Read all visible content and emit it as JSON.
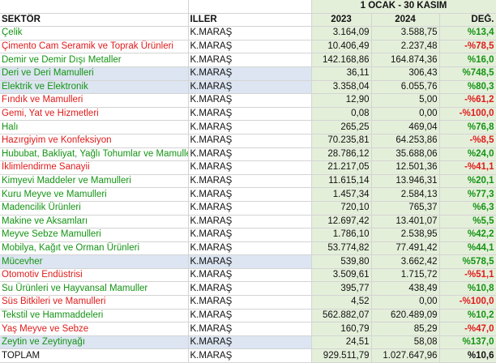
{
  "header": {
    "period": "1 OCAK  -  30 KASIM",
    "col_sector": "SEKTÖR",
    "col_province": "ILLER",
    "col_year1": "2023",
    "col_year2": "2024",
    "col_change": "DEĞ."
  },
  "rows": [
    {
      "sector": "Çelik",
      "province": "K.MARAŞ",
      "y2023": "3.164,09",
      "y2024": "3.588,75",
      "change": "%13,4",
      "trend": "pos",
      "highlight": false
    },
    {
      "sector": "Çimento Cam Seramik ve Toprak Ürünleri",
      "province": "K.MARAŞ",
      "y2023": "10.406,49",
      "y2024": "2.237,48",
      "change": "-%78,5",
      "trend": "neg",
      "highlight": false
    },
    {
      "sector": "Demir ve Demir Dışı Metaller",
      "province": "K.MARAŞ",
      "y2023": "142.168,86",
      "y2024": "164.874,36",
      "change": "%16,0",
      "trend": "pos",
      "highlight": false
    },
    {
      "sector": "Deri ve Deri Mamulleri",
      "province": "K.MARAŞ",
      "y2023": "36,11",
      "y2024": "306,43",
      "change": "%748,5",
      "trend": "pos",
      "highlight": true
    },
    {
      "sector": "Elektrik ve Elektronik",
      "province": "K.MARAŞ",
      "y2023": "3.358,04",
      "y2024": "6.055,76",
      "change": "%80,3",
      "trend": "pos",
      "highlight": true
    },
    {
      "sector": "Fındık ve Mamulleri",
      "province": "K.MARAŞ",
      "y2023": "12,90",
      "y2024": "5,00",
      "change": "-%61,2",
      "trend": "neg",
      "highlight": false
    },
    {
      "sector": "Gemi, Yat ve Hizmetleri",
      "province": "K.MARAŞ",
      "y2023": "0,08",
      "y2024": "0,00",
      "change": "-%100,0",
      "trend": "neg",
      "highlight": false
    },
    {
      "sector": "Halı",
      "province": "K.MARAŞ",
      "y2023": "265,25",
      "y2024": "469,04",
      "change": "%76,8",
      "trend": "pos",
      "highlight": false
    },
    {
      "sector": "Hazırgiyim ve Konfeksiyon",
      "province": "K.MARAŞ",
      "y2023": "70.235,81",
      "y2024": "64.253,86",
      "change": "-%8,5",
      "trend": "neg",
      "highlight": false
    },
    {
      "sector": "Hububat, Bakliyat, Yağlı Tohumlar ve Mamulleri",
      "province": "K.MARAŞ",
      "y2023": "28.786,12",
      "y2024": "35.688,06",
      "change": "%24,0",
      "trend": "pos",
      "highlight": false
    },
    {
      "sector": "İklimlendirme Sanayii",
      "province": "K.MARAŞ",
      "y2023": "21.217,05",
      "y2024": "12.501,36",
      "change": "-%41,1",
      "trend": "neg",
      "highlight": false
    },
    {
      "sector": "Kimyevi Maddeler ve Mamulleri",
      "province": "K.MARAŞ",
      "y2023": "11.615,14",
      "y2024": "13.946,31",
      "change": "%20,1",
      "trend": "pos",
      "highlight": false
    },
    {
      "sector": "Kuru Meyve ve Mamulleri",
      "province": "K.MARAŞ",
      "y2023": "1.457,34",
      "y2024": "2.584,13",
      "change": "%77,3",
      "trend": "pos",
      "highlight": false
    },
    {
      "sector": "Madencilik Ürünleri",
      "province": "K.MARAŞ",
      "y2023": "720,10",
      "y2024": "765,37",
      "change": "%6,3",
      "trend": "pos",
      "highlight": false
    },
    {
      "sector": "Makine ve Aksamları",
      "province": "K.MARAŞ",
      "y2023": "12.697,42",
      "y2024": "13.401,07",
      "change": "%5,5",
      "trend": "pos",
      "highlight": false
    },
    {
      "sector": "Meyve Sebze Mamulleri",
      "province": "K.MARAŞ",
      "y2023": "1.786,10",
      "y2024": "2.538,95",
      "change": "%42,2",
      "trend": "pos",
      "highlight": false
    },
    {
      "sector": "Mobilya, Kağıt ve Orman Ürünleri",
      "province": "K.MARAŞ",
      "y2023": "53.774,82",
      "y2024": "77.491,42",
      "change": "%44,1",
      "trend": "pos",
      "highlight": false
    },
    {
      "sector": "Mücevher",
      "province": "K.MARAŞ",
      "y2023": "539,80",
      "y2024": "3.662,42",
      "change": "%578,5",
      "trend": "pos",
      "highlight": true
    },
    {
      "sector": "Otomotiv Endüstrisi",
      "province": "K.MARAŞ",
      "y2023": "3.509,61",
      "y2024": "1.715,72",
      "change": "-%51,1",
      "trend": "neg",
      "highlight": false
    },
    {
      "sector": "Su Ürünleri ve Hayvansal Mamuller",
      "province": "K.MARAŞ",
      "y2023": "395,77",
      "y2024": "438,49",
      "change": "%10,8",
      "trend": "pos",
      "highlight": false
    },
    {
      "sector": "Süs Bitkileri ve Mamulleri",
      "province": "K.MARAŞ",
      "y2023": "4,52",
      "y2024": "0,00",
      "change": "-%100,0",
      "trend": "neg",
      "highlight": false
    },
    {
      "sector": "Tekstil ve Hammaddeleri",
      "province": "K.MARAŞ",
      "y2023": "562.882,07",
      "y2024": "620.489,09",
      "change": "%10,2",
      "trend": "pos",
      "highlight": false
    },
    {
      "sector": "Yaş Meyve ve Sebze",
      "province": "K.MARAŞ",
      "y2023": "160,79",
      "y2024": "85,29",
      "change": "-%47,0",
      "trend": "neg",
      "highlight": false
    },
    {
      "sector": "Zeytin ve Zeytinyağı",
      "province": "K.MARAŞ",
      "y2023": "24,51",
      "y2024": "58,08",
      "change": "%137,0",
      "trend": "pos",
      "highlight": true
    }
  ],
  "total": {
    "sector": "TOPLAM",
    "province": "K.MARAŞ",
    "y2023": "929.511,79",
    "y2024": "1.027.647,96",
    "change": "%10,6"
  },
  "colors": {
    "positive": "#149414",
    "negative": "#e01b1b",
    "value_bg": "#e4efda",
    "highlight_bg": "#dce5f1"
  }
}
